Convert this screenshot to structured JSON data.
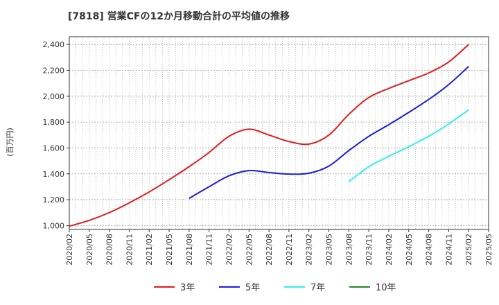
{
  "chart_data": {
    "type": "line",
    "title": "[7818]  営業CFの12か月移動合計の平均値の推移",
    "ylabel": "(百万円)",
    "xlabel": "",
    "ylim": [
      970,
      2460
    ],
    "y_ticks": [
      1000,
      1200,
      1400,
      1600,
      1800,
      2000,
      2200,
      2400
    ],
    "y_tick_labels": [
      "1,000",
      "1,200",
      "1,400",
      "1,600",
      "1,800",
      "2,000",
      "2,200",
      "2,400"
    ],
    "x_ticks": [
      "2020/02",
      "2020/05",
      "2020/08",
      "2020/11",
      "2021/02",
      "2021/05",
      "2021/08",
      "2021/11",
      "2022/02",
      "2022/05",
      "2022/08",
      "2022/11",
      "2023/02",
      "2023/05",
      "2023/08",
      "2023/11",
      "2024/02",
      "2024/05",
      "2024/08",
      "2024/11",
      "2025/02",
      "2025/05"
    ],
    "grid": true,
    "legend_position": "bottom",
    "series": [
      {
        "name": "3年",
        "color": "#e31a1c",
        "points": [
          [
            "2020/02",
            995
          ],
          [
            "2020/05",
            1040
          ],
          [
            "2020/08",
            1100
          ],
          [
            "2020/11",
            1175
          ],
          [
            "2021/02",
            1260
          ],
          [
            "2021/05",
            1355
          ],
          [
            "2021/08",
            1455
          ],
          [
            "2021/11",
            1565
          ],
          [
            "2022/02",
            1690
          ],
          [
            "2022/05",
            1745
          ],
          [
            "2022/08",
            1700
          ],
          [
            "2022/11",
            1650
          ],
          [
            "2023/02",
            1630
          ],
          [
            "2023/05",
            1700
          ],
          [
            "2023/08",
            1860
          ],
          [
            "2023/11",
            1990
          ],
          [
            "2024/02",
            2060
          ],
          [
            "2024/05",
            2120
          ],
          [
            "2024/08",
            2180
          ],
          [
            "2024/11",
            2265
          ],
          [
            "2025/02",
            2400
          ]
        ]
      },
      {
        "name": "5年",
        "color": "#1a1adc",
        "points": [
          [
            "2021/08",
            1210
          ],
          [
            "2021/11",
            1300
          ],
          [
            "2022/02",
            1385
          ],
          [
            "2022/05",
            1425
          ],
          [
            "2022/08",
            1410
          ],
          [
            "2022/11",
            1398
          ],
          [
            "2023/02",
            1405
          ],
          [
            "2023/05",
            1460
          ],
          [
            "2023/08",
            1580
          ],
          [
            "2023/11",
            1690
          ],
          [
            "2024/02",
            1780
          ],
          [
            "2024/05",
            1875
          ],
          [
            "2024/08",
            1975
          ],
          [
            "2024/11",
            2090
          ],
          [
            "2025/02",
            2230
          ]
        ]
      },
      {
        "name": "7年",
        "color": "#33eeee",
        "points": [
          [
            "2023/08",
            1340
          ],
          [
            "2023/11",
            1455
          ],
          [
            "2024/02",
            1535
          ],
          [
            "2024/05",
            1610
          ],
          [
            "2024/08",
            1690
          ],
          [
            "2024/11",
            1785
          ],
          [
            "2025/02",
            1895
          ]
        ]
      },
      {
        "name": "10年",
        "color": "#228b22",
        "points": []
      }
    ]
  }
}
